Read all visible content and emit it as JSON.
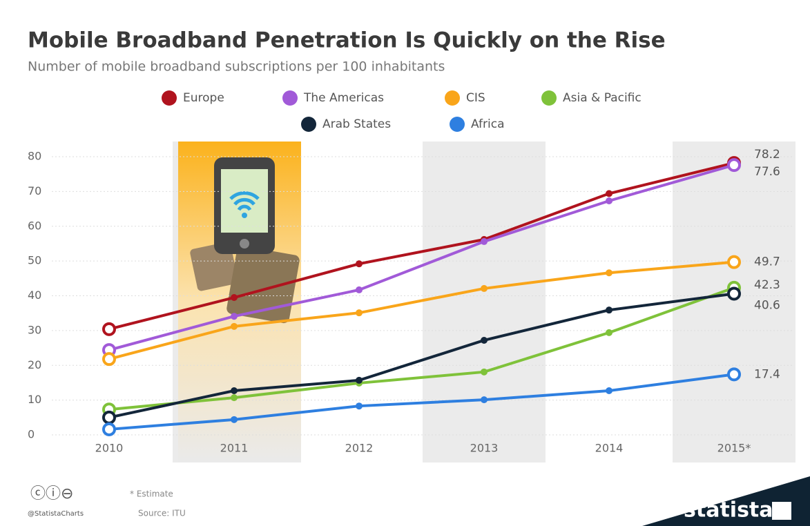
{
  "chart_data": {
    "type": "line",
    "title": "Mobile Broadband Penetration Is Quickly on the Rise",
    "subtitle": "Number of mobile broadband subscriptions per 100 inhabitants",
    "categories": [
      "2010",
      "2011",
      "2012",
      "2013",
      "2014",
      "2015*"
    ],
    "series": [
      {
        "name": "Europe",
        "color": "#b0131e",
        "values": [
          30.4,
          39.5,
          49.2,
          56.2,
          69.4,
          78.2
        ]
      },
      {
        "name": "The Americas",
        "color": "#a15ad8",
        "values": [
          24.4,
          34.1,
          41.7,
          55.6,
          67.3,
          77.6
        ]
      },
      {
        "name": "CIS",
        "color": "#f9a51a",
        "values": [
          21.8,
          31.2,
          35.1,
          42.1,
          46.6,
          49.7
        ]
      },
      {
        "name": "Asia & Pacific",
        "color": "#7fc23a",
        "values": [
          7.3,
          10.7,
          14.9,
          18.1,
          29.4,
          42.3
        ]
      },
      {
        "name": "Arab States",
        "color": "#13263a",
        "values": [
          5.0,
          12.7,
          15.7,
          27.2,
          35.9,
          40.6
        ]
      },
      {
        "name": "Africa",
        "color": "#2e7fe0",
        "values": [
          1.6,
          4.4,
          8.3,
          10.1,
          12.7,
          17.4
        ]
      }
    ],
    "ylim": [
      0,
      80
    ],
    "yticks": [
      0,
      10,
      20,
      30,
      40,
      50,
      60,
      70,
      80
    ],
    "grid": true
  },
  "footer": {
    "note": "* Estimate",
    "source": "Source: ITU",
    "handle": "@StatistaCharts",
    "brand": "statista"
  }
}
